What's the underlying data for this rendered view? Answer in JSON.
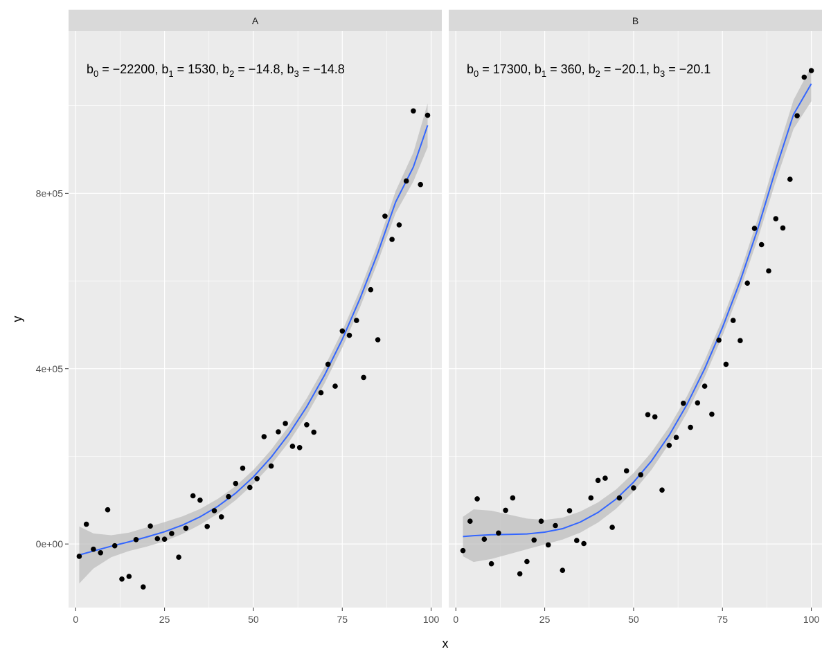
{
  "chart_data": {
    "type": "scatter",
    "xlabel": "x",
    "ylabel": "y",
    "xlim": [
      -2,
      103
    ],
    "ylim": [
      -145000,
      1170000
    ],
    "x_ticks": [
      0,
      25,
      50,
      75,
      100
    ],
    "x_tick_labels": [
      "0",
      "25",
      "50",
      "75",
      "100"
    ],
    "y_ticks": [
      0,
      400000,
      800000
    ],
    "y_tick_labels": [
      "0e+00",
      "4e+05",
      "8e+05"
    ],
    "grid": true,
    "colors": {
      "panel_bg": "#ebebeb",
      "strip_bg": "#d9d9d9",
      "grid": "#ffffff",
      "points": "#000000",
      "smooth_line": "#3366ff",
      "ribbon": "#bdbdbd"
    },
    "panels": [
      {
        "strip": "A",
        "annotation": {
          "b0_label": "b",
          "b0_sub": "0",
          "b0_value": " = −22200, ",
          "b1_label": "b",
          "b1_sub": "1",
          "b1_value": " = 1530, ",
          "b2_label": "b",
          "b2_sub": "2",
          "b2_value": " = −14.8, ",
          "b3_label": "b",
          "b3_sub": "3",
          "b3_value": " = −14.8"
        },
        "points": [
          [
            1,
            -28000
          ],
          [
            3,
            45000
          ],
          [
            5,
            -12000
          ],
          [
            7,
            -20000
          ],
          [
            9,
            78000
          ],
          [
            11,
            -4000
          ],
          [
            13,
            -80000
          ],
          [
            15,
            -74000
          ],
          [
            17,
            10000
          ],
          [
            19,
            -98000
          ],
          [
            21,
            41000
          ],
          [
            23,
            12000
          ],
          [
            25,
            11000
          ],
          [
            27,
            24000
          ],
          [
            29,
            -30000
          ],
          [
            31,
            36000
          ],
          [
            33,
            110000
          ],
          [
            35,
            100000
          ],
          [
            37,
            40000
          ],
          [
            39,
            76000
          ],
          [
            41,
            62000
          ],
          [
            43,
            108000
          ],
          [
            45,
            138000
          ],
          [
            47,
            173000
          ],
          [
            49,
            129000
          ],
          [
            51,
            149000
          ],
          [
            53,
            245000
          ],
          [
            55,
            178000
          ],
          [
            57,
            256000
          ],
          [
            59,
            275000
          ],
          [
            61,
            223000
          ],
          [
            63,
            220000
          ],
          [
            65,
            272000
          ],
          [
            67,
            255000
          ],
          [
            69,
            345000
          ],
          [
            71,
            410000
          ],
          [
            73,
            360000
          ],
          [
            75,
            486000
          ],
          [
            77,
            476000
          ],
          [
            79,
            510000
          ],
          [
            81,
            380000
          ],
          [
            83,
            580000
          ],
          [
            85,
            466000
          ],
          [
            87,
            748000
          ],
          [
            89,
            695000
          ],
          [
            91,
            728000
          ],
          [
            93,
            828000
          ],
          [
            95,
            988000
          ],
          [
            97,
            820000
          ],
          [
            99,
            978000
          ]
        ],
        "smooth": [
          [
            1,
            -25000
          ],
          [
            5,
            -16000
          ],
          [
            10,
            -5000
          ],
          [
            15,
            5000
          ],
          [
            20,
            16000
          ],
          [
            25,
            28000
          ],
          [
            30,
            43000
          ],
          [
            35,
            62000
          ],
          [
            40,
            86000
          ],
          [
            45,
            116000
          ],
          [
            50,
            153000
          ],
          [
            55,
            198000
          ],
          [
            60,
            251000
          ],
          [
            65,
            313000
          ],
          [
            70,
            385000
          ],
          [
            75,
            467000
          ],
          [
            80,
            560000
          ],
          [
            85,
            664000
          ],
          [
            90,
            780000
          ],
          [
            95,
            860000
          ],
          [
            99,
            955000
          ]
        ],
        "ribbon_halfwidth": [
          65000,
          40000,
          25000,
          21000,
          22000,
          22000,
          20000,
          18000,
          17000,
          16000,
          16000,
          17000,
          18000,
          19000,
          19000,
          19000,
          20000,
          21000,
          25000,
          33000,
          50000
        ]
      },
      {
        "strip": "B",
        "annotation": {
          "b0_label": "b",
          "b0_sub": "0",
          "b0_value": " = 17300, ",
          "b1_label": "b",
          "b1_sub": "1",
          "b1_value": " = 360, ",
          "b2_label": "b",
          "b2_sub": "2",
          "b2_value": " = −20.1, ",
          "b3_label": "b",
          "b3_sub": "3",
          "b3_value": " = −20.1"
        },
        "points": [
          [
            2,
            -15000
          ],
          [
            4,
            52000
          ],
          [
            6,
            103000
          ],
          [
            8,
            11000
          ],
          [
            10,
            -45000
          ],
          [
            12,
            25000
          ],
          [
            14,
            77000
          ],
          [
            16,
            105000
          ],
          [
            18,
            -68000
          ],
          [
            20,
            -40000
          ],
          [
            22,
            9000
          ],
          [
            24,
            52000
          ],
          [
            26,
            -2000
          ],
          [
            28,
            42000
          ],
          [
            30,
            -60000
          ],
          [
            32,
            76000
          ],
          [
            34,
            8000
          ],
          [
            36,
            1000
          ],
          [
            38,
            105000
          ],
          [
            40,
            145000
          ],
          [
            42,
            150000
          ],
          [
            44,
            38000
          ],
          [
            46,
            105000
          ],
          [
            48,
            167000
          ],
          [
            50,
            128000
          ],
          [
            52,
            158000
          ],
          [
            54,
            295000
          ],
          [
            56,
            290000
          ],
          [
            58,
            123000
          ],
          [
            60,
            225000
          ],
          [
            62,
            243000
          ],
          [
            64,
            321000
          ],
          [
            66,
            266000
          ],
          [
            68,
            322000
          ],
          [
            70,
            360000
          ],
          [
            72,
            296000
          ],
          [
            74,
            465000
          ],
          [
            76,
            410000
          ],
          [
            78,
            510000
          ],
          [
            80,
            464000
          ],
          [
            82,
            595000
          ],
          [
            84,
            720000
          ],
          [
            86,
            683000
          ],
          [
            88,
            623000
          ],
          [
            90,
            742000
          ],
          [
            92,
            721000
          ],
          [
            94,
            832000
          ],
          [
            96,
            977000
          ],
          [
            98,
            1065000
          ],
          [
            100,
            1080000
          ]
        ],
        "smooth": [
          [
            2,
            17000
          ],
          [
            5,
            19000
          ],
          [
            10,
            21000
          ],
          [
            15,
            22000
          ],
          [
            20,
            23000
          ],
          [
            25,
            27000
          ],
          [
            30,
            35000
          ],
          [
            35,
            50000
          ],
          [
            40,
            72000
          ],
          [
            45,
            102000
          ],
          [
            50,
            141000
          ],
          [
            55,
            189000
          ],
          [
            60,
            248000
          ],
          [
            65,
            318000
          ],
          [
            70,
            400000
          ],
          [
            75,
            494000
          ],
          [
            80,
            600000
          ],
          [
            85,
            721000
          ],
          [
            90,
            855000
          ],
          [
            95,
            980000
          ],
          [
            100,
            1050000
          ]
        ],
        "ribbon_halfwidth": [
          45000,
          60000,
          55000,
          45000,
          35000,
          28000,
          25000,
          24000,
          23000,
          22000,
          21000,
          20000,
          19000,
          19000,
          19000,
          19000,
          20000,
          23000,
          27000,
          33000,
          40000
        ]
      }
    ]
  }
}
